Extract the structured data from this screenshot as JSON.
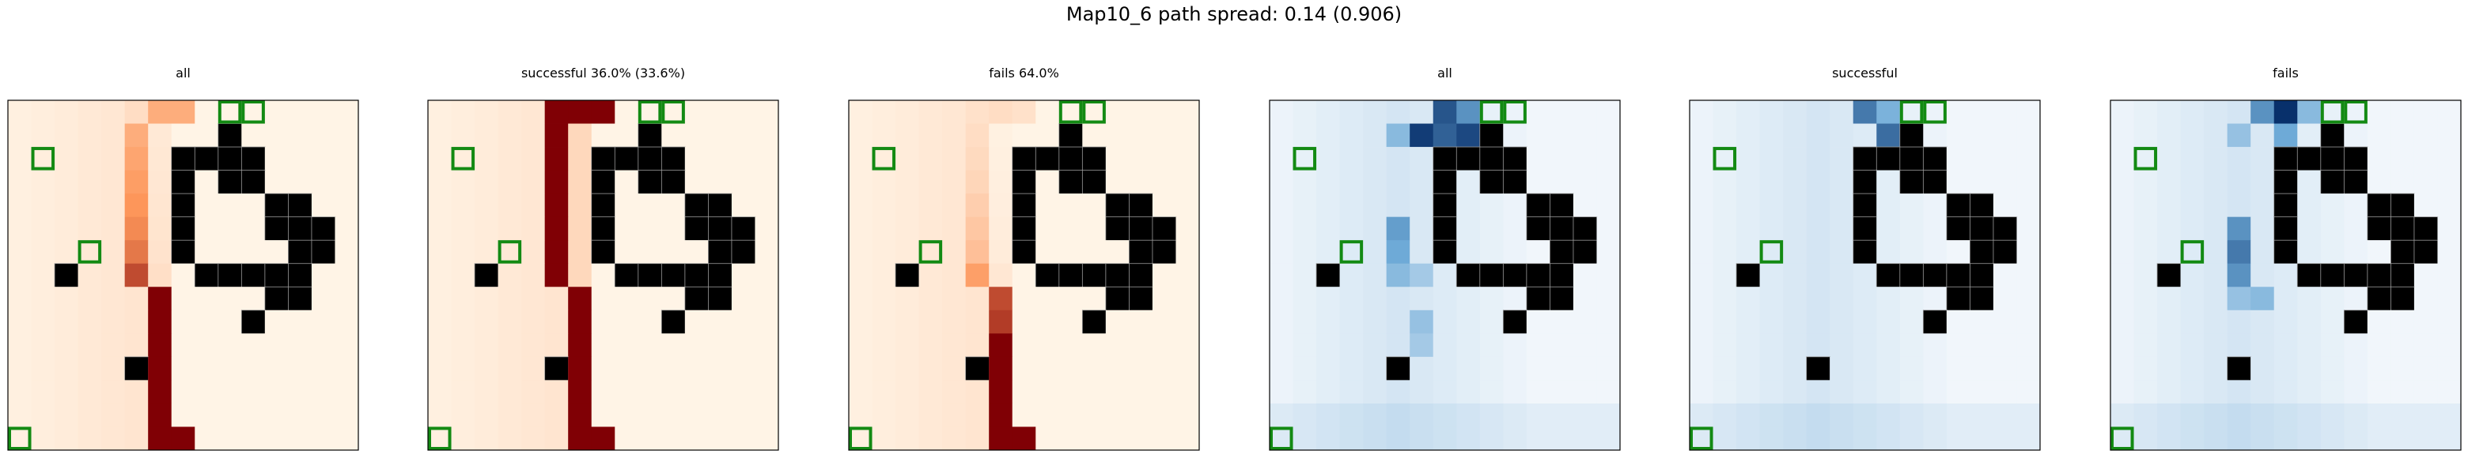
{
  "figure": {
    "suptitle": "Map10_6 path spread: 0.14 (0.906)"
  },
  "chart_data": {
    "type": "heatmap",
    "grid_size": 15,
    "obstacles": [
      [
        9,
        1
      ],
      [
        7,
        2
      ],
      [
        8,
        2
      ],
      [
        9,
        2
      ],
      [
        10,
        2
      ],
      [
        9,
        3
      ],
      [
        10,
        3
      ],
      [
        7,
        3
      ],
      [
        7,
        4
      ],
      [
        11,
        4
      ],
      [
        12,
        4
      ],
      [
        7,
        5
      ],
      [
        11,
        5
      ],
      [
        12,
        5
      ],
      [
        13,
        5
      ],
      [
        7,
        6
      ],
      [
        12,
        6
      ],
      [
        13,
        6
      ],
      [
        2,
        7
      ],
      [
        8,
        7
      ],
      [
        9,
        7
      ],
      [
        10,
        7
      ],
      [
        11,
        7
      ],
      [
        12,
        7
      ],
      [
        11,
        8
      ],
      [
        12,
        8
      ],
      [
        10,
        9
      ],
      [
        5,
        11
      ]
    ],
    "markers": [
      [
        9,
        0
      ],
      [
        10,
        0
      ],
      [
        1,
        2
      ],
      [
        3,
        6
      ],
      [
        0,
        14
      ]
    ],
    "panels": [
      {
        "title": "all",
        "cmap": "orange",
        "ramp": [
          [
            0,
            0.12
          ],
          [
            1,
            0.38
          ],
          [
            2,
            0.42
          ],
          [
            3,
            0.46
          ],
          [
            4,
            0.5
          ],
          [
            5,
            0.54
          ],
          [
            6,
            0.6
          ],
          [
            7,
            0.75
          ],
          [
            8,
            1
          ],
          [
            9,
            1
          ],
          [
            10,
            1
          ],
          [
            11,
            1
          ],
          [
            12,
            1
          ],
          [
            13,
            1
          ],
          [
            14,
            1
          ]
        ],
        "top_extra": [
          [
            6,
            0,
            0.38
          ],
          [
            7,
            0,
            0.38
          ]
        ]
      },
      {
        "title": "successful 36.0% (33.6%)",
        "cmap": "orange",
        "ramp": [
          [
            0,
            1
          ],
          [
            1,
            1
          ],
          [
            2,
            1
          ],
          [
            3,
            1
          ],
          [
            4,
            1
          ],
          [
            5,
            1
          ],
          [
            6,
            1
          ],
          [
            7,
            1
          ],
          [
            8,
            1
          ],
          [
            9,
            1
          ],
          [
            10,
            1
          ],
          [
            11,
            1
          ],
          [
            12,
            1
          ],
          [
            13,
            1
          ],
          [
            14,
            1
          ]
        ],
        "top_extra": [
          [
            6,
            0,
            1
          ],
          [
            7,
            0,
            1
          ]
        ]
      },
      {
        "title": "fails 64.0%",
        "cmap": "orange",
        "ramp": [
          [
            0,
            0.1
          ],
          [
            1,
            0.12
          ],
          [
            2,
            0.14
          ],
          [
            3,
            0.16
          ],
          [
            4,
            0.2
          ],
          [
            5,
            0.24
          ],
          [
            6,
            0.28
          ],
          [
            7,
            0.45
          ],
          [
            8,
            0.75
          ],
          [
            9,
            0.8
          ],
          [
            10,
            1
          ],
          [
            11,
            1
          ],
          [
            12,
            1
          ],
          [
            13,
            1
          ],
          [
            14,
            1
          ]
        ],
        "top_extra": [
          [
            6,
            0,
            0.12
          ],
          [
            7,
            0,
            0.1
          ]
        ]
      },
      {
        "title": "all",
        "cmap": "blue",
        "hot": [
          [
            7,
            0,
            0.85
          ],
          [
            8,
            0,
            0.6
          ],
          [
            6,
            1,
            0.95
          ],
          [
            7,
            1,
            0.8
          ],
          [
            8,
            1,
            0.9
          ],
          [
            9,
            1,
            1
          ],
          [
            9,
            2,
            0.95
          ],
          [
            10,
            3,
            0.7
          ],
          [
            5,
            1,
            0.4
          ],
          [
            5,
            5,
            0.55
          ],
          [
            5,
            6,
            0.5
          ],
          [
            5,
            7,
            0.4
          ],
          [
            6,
            7,
            0.3
          ],
          [
            6,
            9,
            0.35
          ],
          [
            6,
            10,
            0.3
          ]
        ]
      },
      {
        "title": "successful",
        "cmap": "blue",
        "hot": [
          [
            7,
            0,
            0.7
          ],
          [
            8,
            0,
            0.45
          ],
          [
            8,
            1,
            0.75
          ],
          [
            9,
            1,
            0.9
          ],
          [
            9,
            2,
            0.95
          ],
          [
            10,
            3,
            0.7
          ],
          [
            10,
            2,
            0.5
          ]
        ]
      },
      {
        "title": "fails",
        "cmap": "blue",
        "hot": [
          [
            6,
            0,
            0.6
          ],
          [
            7,
            0,
            1
          ],
          [
            8,
            0,
            0.4
          ],
          [
            5,
            1,
            0.35
          ],
          [
            7,
            1,
            0.5
          ],
          [
            5,
            5,
            0.6
          ],
          [
            5,
            6,
            0.7
          ],
          [
            5,
            7,
            0.6
          ],
          [
            6,
            8,
            0.4
          ],
          [
            5,
            8,
            0.35
          ]
        ]
      }
    ]
  }
}
